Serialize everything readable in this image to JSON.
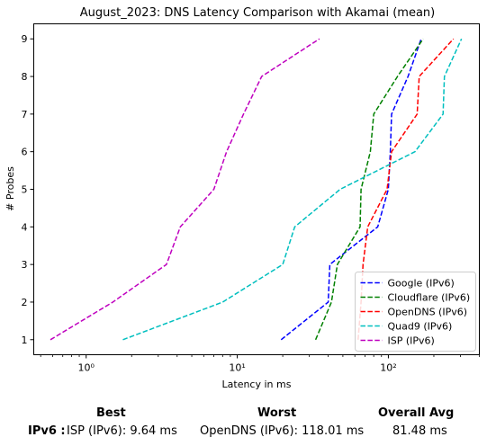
{
  "chart_data": {
    "type": "line",
    "title": "August_2023: DNS Latency Comparison with Akamai (mean)",
    "xlabel": "Latency in ms",
    "ylabel": "# Probes",
    "xscale": "log",
    "xlim": [
      0.45,
      400
    ],
    "ylim": [
      0.6,
      9.4
    ],
    "x_ticks": [
      {
        "value": 1,
        "label": "10⁰"
      },
      {
        "value": 10,
        "label": "10¹"
      },
      {
        "value": 100,
        "label": "10²"
      }
    ],
    "y_ticks": [
      1,
      2,
      3,
      4,
      5,
      6,
      7,
      8,
      9
    ],
    "legend_position": "bottom-right",
    "grid": false,
    "series": [
      {
        "name": "Google (IPv6)",
        "color": "#0000ff",
        "points": [
          [
            19.5,
            1
          ],
          [
            40,
            2
          ],
          [
            41,
            3
          ],
          [
            85,
            4
          ],
          [
            100,
            5
          ],
          [
            103,
            6
          ],
          [
            105,
            7
          ],
          [
            135,
            8
          ],
          [
            165,
            9
          ]
        ]
      },
      {
        "name": "Cloudflare (IPv6)",
        "color": "#008000",
        "points": [
          [
            33,
            1
          ],
          [
            42,
            2
          ],
          [
            46,
            3
          ],
          [
            65,
            4
          ],
          [
            66,
            5
          ],
          [
            76,
            6
          ],
          [
            80,
            7
          ],
          [
            115,
            8
          ],
          [
            170,
            9
          ]
        ]
      },
      {
        "name": "OpenDNS (IPv6)",
        "color": "#ff0000",
        "points": [
          [
            63,
            1
          ],
          [
            66,
            2
          ],
          [
            68,
            3
          ],
          [
            73,
            4
          ],
          [
            98,
            5
          ],
          [
            105,
            6
          ],
          [
            155,
            7
          ],
          [
            160,
            8
          ],
          [
            270,
            9
          ]
        ]
      },
      {
        "name": "Quad9 (IPv6)",
        "color": "#00bfbf",
        "points": [
          [
            1.75,
            1
          ],
          [
            8,
            2
          ],
          [
            20,
            3
          ],
          [
            24,
            4
          ],
          [
            48,
            5
          ],
          [
            150,
            6
          ],
          [
            230,
            7
          ],
          [
            235,
            8
          ],
          [
            305,
            9
          ]
        ]
      },
      {
        "name": "ISP (IPv6)",
        "color": "#bf00bf",
        "points": [
          [
            0.58,
            1
          ],
          [
            1.5,
            2
          ],
          [
            3.4,
            3
          ],
          [
            4.2,
            4
          ],
          [
            7,
            5
          ],
          [
            8.5,
            6
          ],
          [
            11,
            7
          ],
          [
            14.5,
            8
          ],
          [
            35,
            9
          ]
        ]
      }
    ]
  },
  "summary": {
    "headers": {
      "best": "Best",
      "worst": "Worst",
      "avg": "Overall Avg"
    },
    "row_label": "IPv6 :",
    "best": "ISP (IPv6): 9.64 ms",
    "worst": "OpenDNS (IPv6): 118.01 ms",
    "avg": "81.48 ms"
  }
}
